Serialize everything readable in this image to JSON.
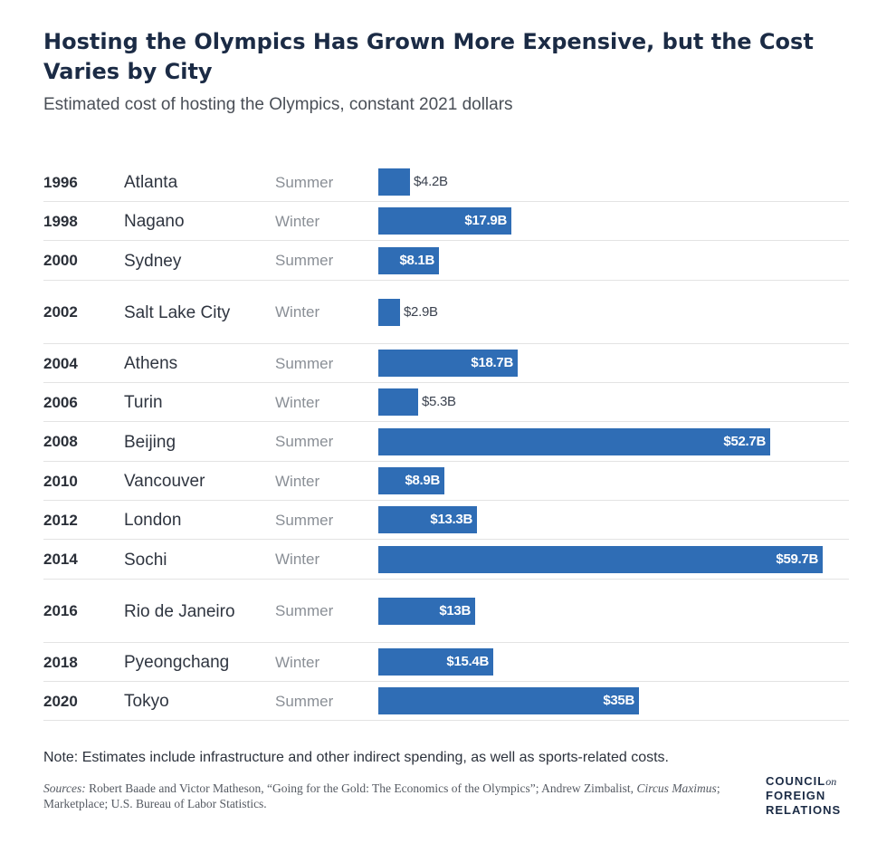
{
  "title": "Hosting the Olympics Has Grown More Expensive, but the Cost Varies by City",
  "subtitle": "Estimated cost of hosting the Olympics, constant 2021 dollars",
  "chart_data": {
    "type": "bar",
    "orientation": "horizontal",
    "unit": "billion USD (constant 2021 dollars)",
    "xlim": [
      0,
      60
    ],
    "grid": false,
    "rows": [
      {
        "year": "1996",
        "city": "Atlanta",
        "season": "Summer",
        "value": 4.2,
        "label": "$4.2B"
      },
      {
        "year": "1998",
        "city": "Nagano",
        "season": "Winter",
        "value": 17.9,
        "label": "$17.9B"
      },
      {
        "year": "2000",
        "city": "Sydney",
        "season": "Summer",
        "value": 8.1,
        "label": "$8.1B"
      },
      {
        "year": "2002",
        "city": "Salt Lake City",
        "season": "Winter",
        "value": 2.9,
        "label": "$2.9B"
      },
      {
        "year": "2004",
        "city": "Athens",
        "season": "Summer",
        "value": 18.7,
        "label": "$18.7B"
      },
      {
        "year": "2006",
        "city": "Turin",
        "season": "Winter",
        "value": 5.3,
        "label": "$5.3B"
      },
      {
        "year": "2008",
        "city": "Beijing",
        "season": "Summer",
        "value": 52.7,
        "label": "$52.7B"
      },
      {
        "year": "2010",
        "city": "Vancouver",
        "season": "Winter",
        "value": 8.9,
        "label": "$8.9B"
      },
      {
        "year": "2012",
        "city": "London",
        "season": "Summer",
        "value": 13.3,
        "label": "$13.3B"
      },
      {
        "year": "2014",
        "city": "Sochi",
        "season": "Winter",
        "value": 59.7,
        "label": "$59.7B"
      },
      {
        "year": "2016",
        "city": "Rio de Janeiro",
        "season": "Summer",
        "value": 13.0,
        "label": "$13B"
      },
      {
        "year": "2018",
        "city": "Pyeongchang",
        "season": "Winter",
        "value": 15.4,
        "label": "$15.4B"
      },
      {
        "year": "2020",
        "city": "Tokyo",
        "season": "Summer",
        "value": 35.0,
        "label": "$35B"
      }
    ],
    "bar_color": "#2f6db5"
  },
  "note": "Note: Estimates include infrastructure and other indirect spending, as well as sports-related costs.",
  "sources": {
    "prefix": "Sources:",
    "part1": " Robert Baade and Victor Matheson, “Going for the Gold: The Economics of the Olympics”; Andrew Zimbalist, ",
    "book": "Circus Maximus",
    "part2": "; Marketplace; U.S. Bureau of Labor Statistics."
  },
  "logo": {
    "line1": "COUNCIL",
    "on": "on",
    "line2": "FOREIGN",
    "line3": "RELATIONS"
  }
}
